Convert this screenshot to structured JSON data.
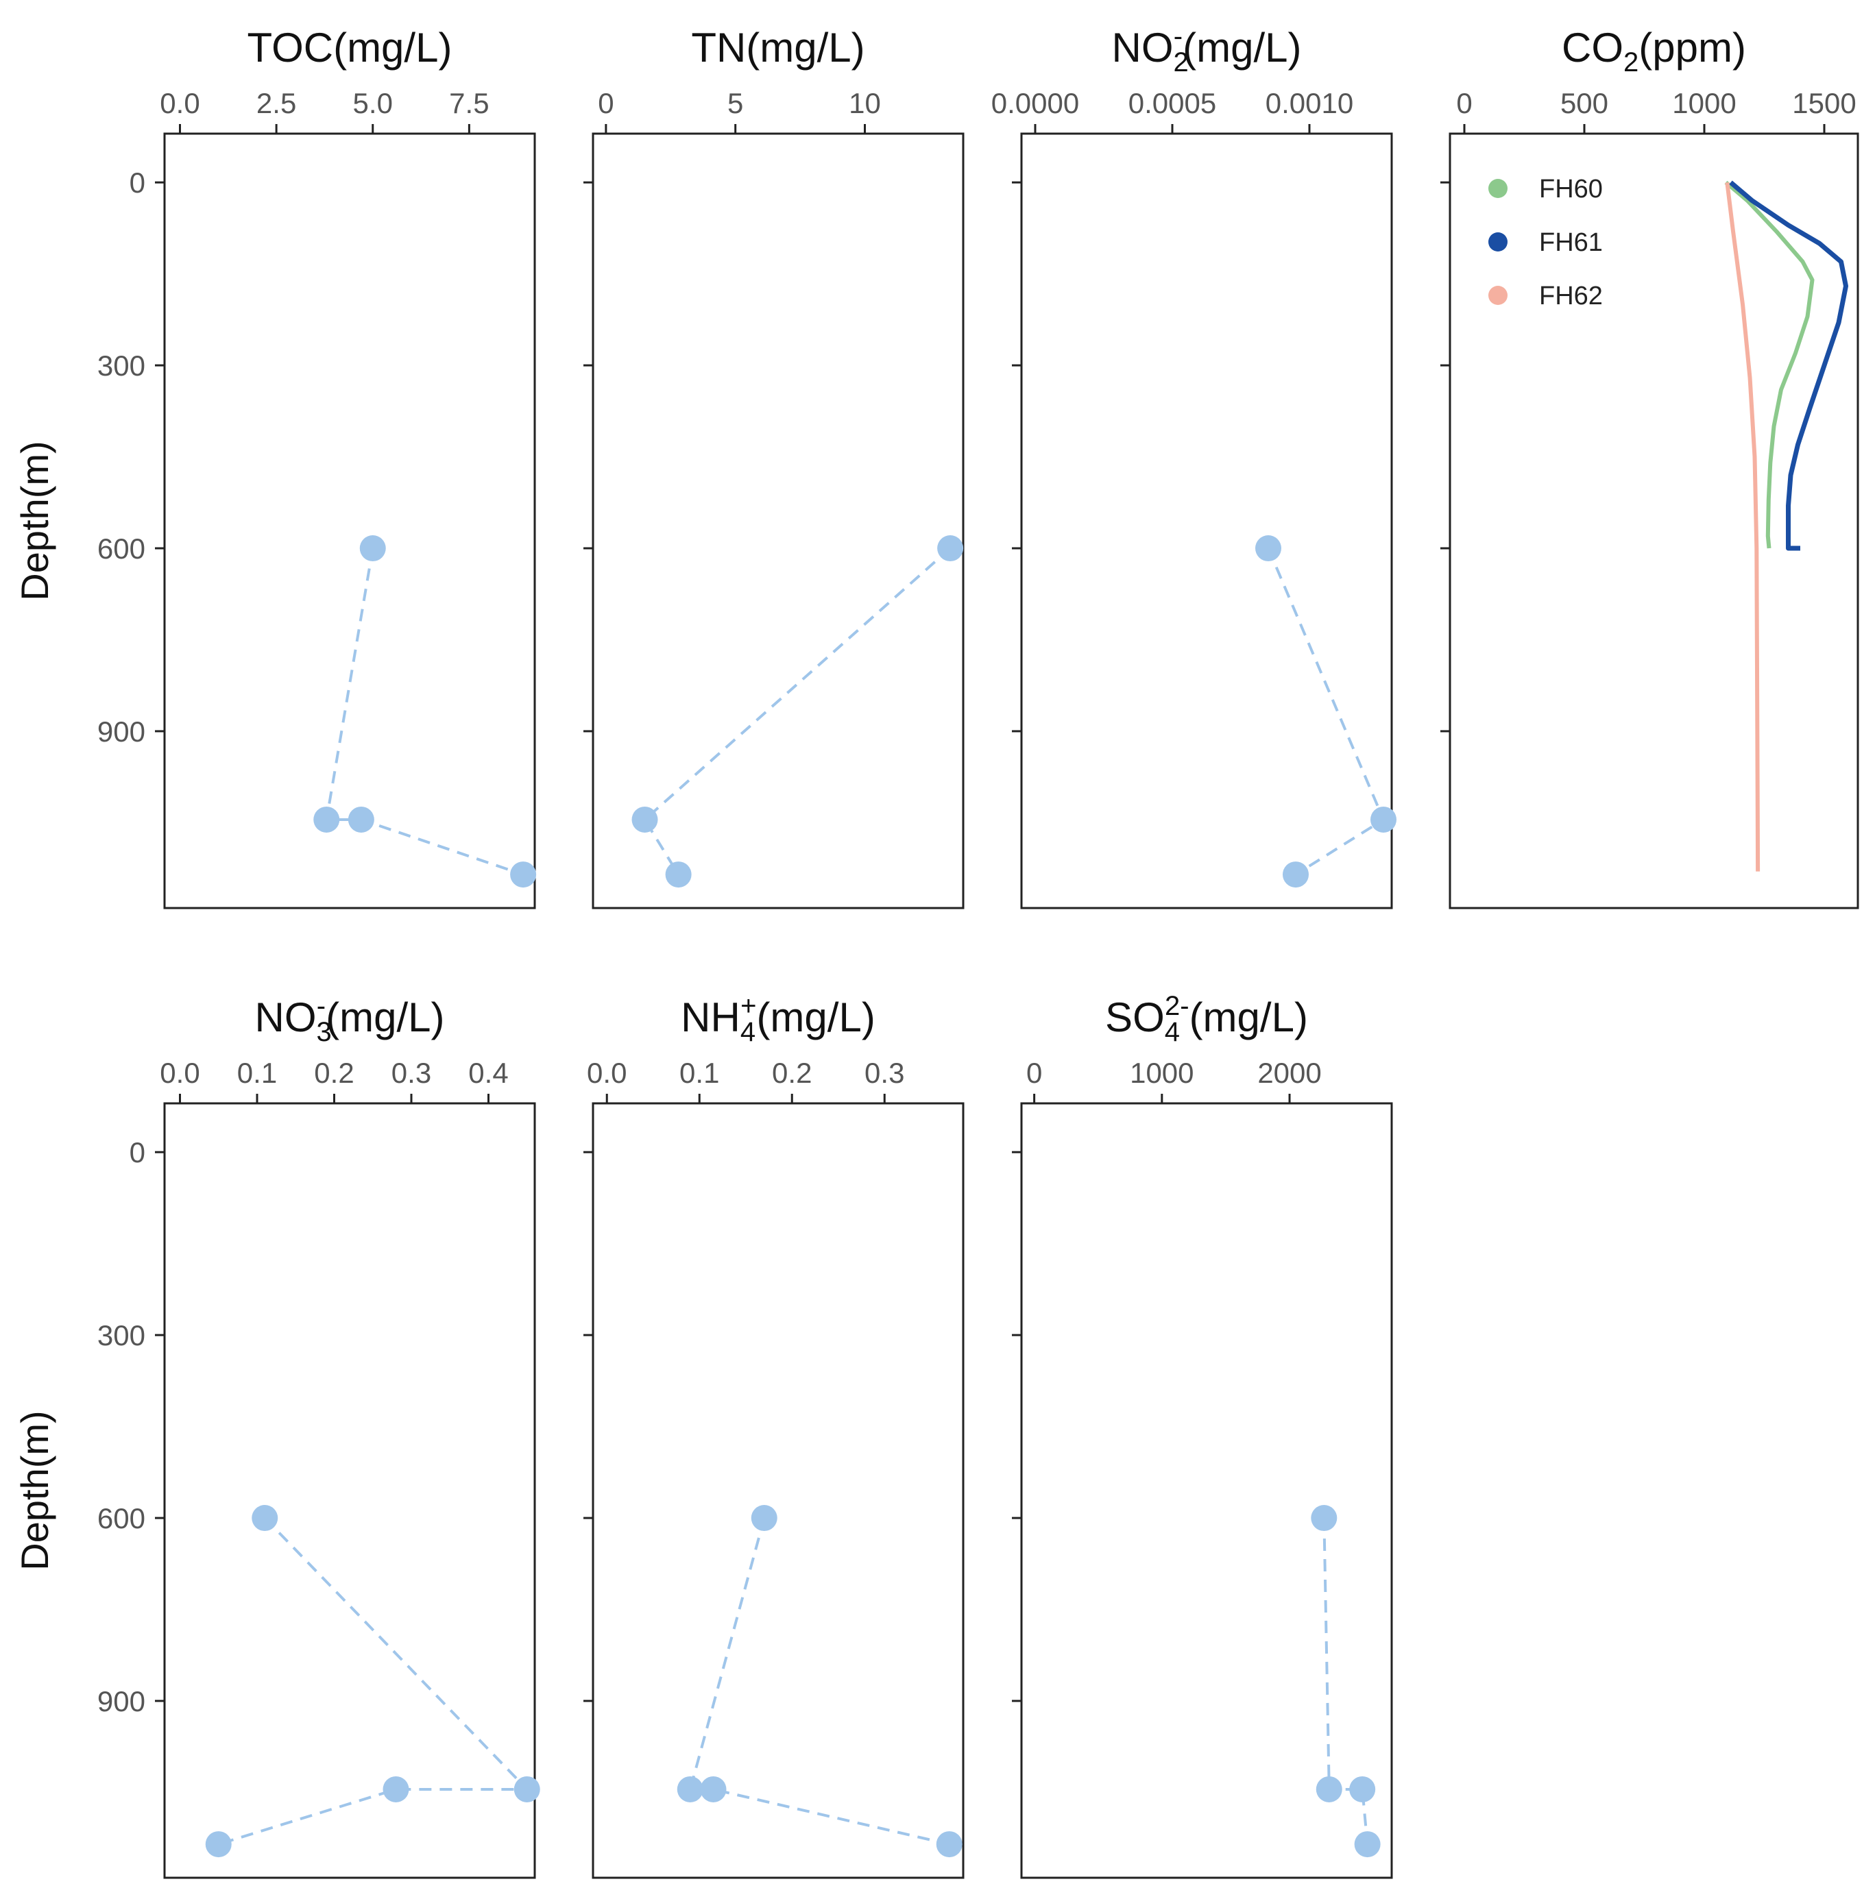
{
  "figure": {
    "ylabel": "Depth(m)"
  },
  "chart_data": [
    {
      "id": "toc",
      "type": "scatter",
      "title_parts": [
        {
          "t": "TOC(mg/L)"
        }
      ],
      "xlim": [
        -0.4,
        9.2
      ],
      "xticks": [
        0,
        2.5,
        5,
        7.5
      ],
      "xtick_labels": [
        "0.0",
        "2.5",
        "5.0",
        "7.5"
      ],
      "ylim": [
        -80,
        1190
      ],
      "yticks": [
        0,
        300,
        600,
        900
      ],
      "ytick_labels": [
        "0",
        "300",
        "600",
        "900"
      ],
      "y_reversed": true,
      "grid": false,
      "series": [
        {
          "x": [
            5.0,
            3.8,
            4.7,
            8.9
          ],
          "y": [
            600,
            1045,
            1045,
            1135
          ],
          "color": "#9fc5ea",
          "style": "dashed-line-with-points"
        }
      ]
    },
    {
      "id": "tn",
      "type": "scatter",
      "title_parts": [
        {
          "t": "TN(mg/L)"
        }
      ],
      "xlim": [
        -0.5,
        13.8
      ],
      "xticks": [
        0,
        5,
        10
      ],
      "xtick_labels": [
        "0",
        "5",
        "10"
      ],
      "ylim": [
        -80,
        1190
      ],
      "yticks": [
        0,
        300,
        600,
        900
      ],
      "y_reversed": true,
      "grid": false,
      "series": [
        {
          "x": [
            13.3,
            1.5,
            2.8
          ],
          "y": [
            600,
            1045,
            1135
          ],
          "color": "#9fc5ea",
          "style": "dashed-line-with-points"
        }
      ]
    },
    {
      "id": "no2",
      "type": "scatter",
      "title_parts": [
        {
          "t": "NO"
        },
        {
          "t": "2",
          "sub": true
        },
        {
          "t": "-",
          "sup": true
        },
        {
          "t": "(mg/L)"
        }
      ],
      "xlim": [
        -5e-05,
        0.0013
      ],
      "xticks": [
        0,
        0.0005,
        0.001
      ],
      "xtick_labels": [
        "0.0000",
        "0.0005",
        "0.0010"
      ],
      "ylim": [
        -80,
        1190
      ],
      "yticks": [
        0,
        300,
        600,
        900
      ],
      "y_reversed": true,
      "grid": false,
      "series": [
        {
          "x": [
            0.00085,
            0.00127,
            0.00095
          ],
          "y": [
            600,
            1045,
            1135
          ],
          "color": "#9fc5ea",
          "style": "dashed-line-with-points"
        }
      ]
    },
    {
      "id": "co2",
      "type": "line",
      "title_parts": [
        {
          "t": "CO"
        },
        {
          "t": "2",
          "sub": true
        },
        {
          "t": "(ppm)"
        }
      ],
      "xlim": [
        -60,
        1640
      ],
      "xticks": [
        0,
        500,
        1000,
        1500
      ],
      "xtick_labels": [
        "0",
        "500",
        "1000",
        "1500"
      ],
      "ylim": [
        -80,
        1190
      ],
      "yticks": [
        0,
        300,
        600,
        900
      ],
      "y_reversed": true,
      "grid": false,
      "legend": "top-left",
      "series": [
        {
          "name": "FH60",
          "color": "#8cc98c",
          "x": [
            1090,
            1180,
            1300,
            1410,
            1450,
            1430,
            1380,
            1320,
            1290,
            1275,
            1268,
            1265,
            1270
          ],
          "y": [
            0,
            30,
            80,
            130,
            160,
            220,
            280,
            340,
            400,
            460,
            520,
            580,
            600
          ]
        },
        {
          "name": "FH61",
          "color": "#1a4ea3",
          "x": [
            1110,
            1200,
            1350,
            1480,
            1570,
            1590,
            1560,
            1500,
            1440,
            1390,
            1360,
            1350,
            1350,
            1350,
            1400
          ],
          "y": [
            0,
            30,
            70,
            100,
            130,
            170,
            230,
            300,
            370,
            430,
            480,
            530,
            580,
            600,
            600
          ]
        },
        {
          "name": "FH62",
          "color": "#f5b0a0",
          "x": [
            1095,
            1120,
            1160,
            1190,
            1210,
            1218,
            1220,
            1222,
            1223
          ],
          "y": [
            0,
            80,
            200,
            320,
            450,
            600,
            800,
            1000,
            1130
          ]
        }
      ]
    },
    {
      "id": "no3",
      "type": "scatter",
      "title_parts": [
        {
          "t": "NO"
        },
        {
          "t": "3",
          "sub": true
        },
        {
          "t": "-",
          "sup": true
        },
        {
          "t": "(mg/L)"
        }
      ],
      "xlim": [
        -0.02,
        0.46
      ],
      "xticks": [
        0,
        0.1,
        0.2,
        0.3,
        0.4
      ],
      "xtick_labels": [
        "0.0",
        "0.1",
        "0.2",
        "0.3",
        "0.4"
      ],
      "ylim": [
        -80,
        1190
      ],
      "yticks": [
        0,
        300,
        600,
        900
      ],
      "ytick_labels": [
        "0",
        "300",
        "600",
        "900"
      ],
      "y_reversed": true,
      "grid": false,
      "series": [
        {
          "x": [
            0.11,
            0.45,
            0.28,
            0.05
          ],
          "y": [
            600,
            1045,
            1045,
            1135
          ],
          "color": "#9fc5ea",
          "style": "dashed-line-with-points"
        }
      ]
    },
    {
      "id": "nh4",
      "type": "scatter",
      "title_parts": [
        {
          "t": "NH"
        },
        {
          "t": "4",
          "sub": true
        },
        {
          "t": "+",
          "sup": true
        },
        {
          "t": "(mg/L)"
        }
      ],
      "xlim": [
        -0.015,
        0.385
      ],
      "xticks": [
        0,
        0.1,
        0.2,
        0.3
      ],
      "xtick_labels": [
        "0.0",
        "0.1",
        "0.2",
        "0.3"
      ],
      "ylim": [
        -80,
        1190
      ],
      "yticks": [
        0,
        300,
        600,
        900
      ],
      "y_reversed": true,
      "grid": false,
      "series": [
        {
          "x": [
            0.17,
            0.09,
            0.115,
            0.37
          ],
          "y": [
            600,
            1045,
            1045,
            1135
          ],
          "color": "#9fc5ea",
          "style": "dashed-line-with-points"
        }
      ]
    },
    {
      "id": "so4",
      "type": "scatter",
      "title_parts": [
        {
          "t": "SO"
        },
        {
          "t": "4",
          "sub": true
        },
        {
          "t": "2-",
          "sup": true
        },
        {
          "t": "(mg/L)"
        }
      ],
      "xlim": [
        -100,
        2800
      ],
      "xticks": [
        0,
        1000,
        2000
      ],
      "xtick_labels": [
        "0",
        "1000",
        "2000"
      ],
      "ylim": [
        -80,
        1190
      ],
      "yticks": [
        0,
        300,
        600,
        900
      ],
      "y_reversed": true,
      "grid": false,
      "series": [
        {
          "x": [
            2270,
            2310,
            2570,
            2610
          ],
          "y": [
            600,
            1045,
            1045,
            1135
          ],
          "color": "#9fc5ea",
          "style": "dashed-line-with-points"
        }
      ]
    }
  ]
}
